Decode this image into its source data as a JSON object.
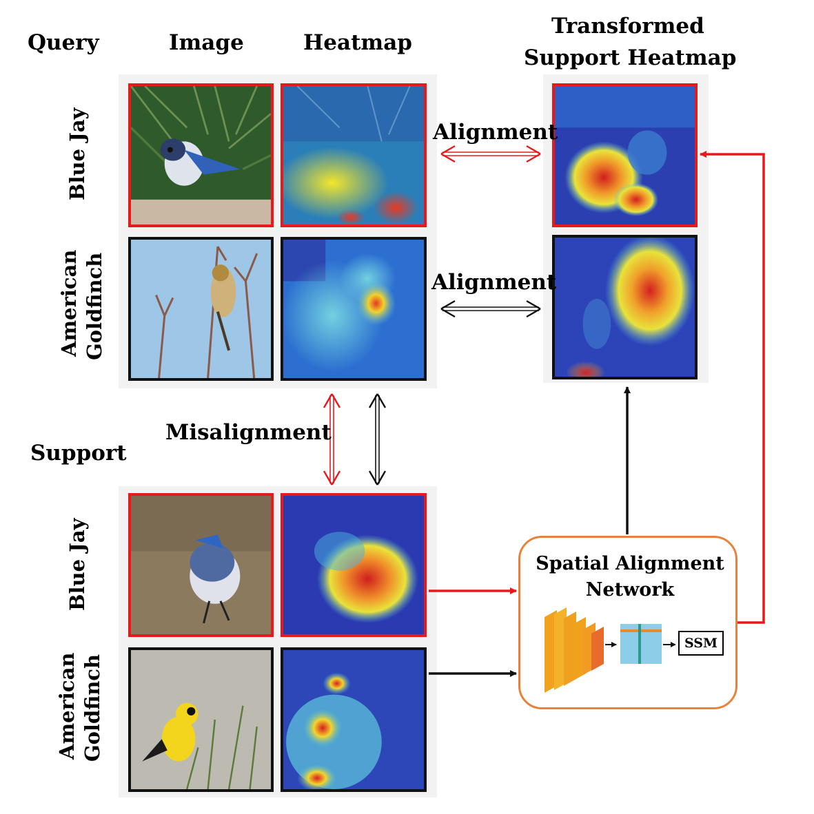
{
  "headers": {
    "query": "Query",
    "image": "Image",
    "heatmap": "Heatmap",
    "transformed_line1": "Transformed",
    "transformed_line2": "Support Heatmap",
    "support": "Support"
  },
  "rows": {
    "blue_jay": "Blue Jay",
    "goldfinch_line1": "American",
    "goldfinch_line2": "Goldfinch"
  },
  "labels": {
    "alignment_top": "Alignment",
    "alignment_bottom": "Alignment",
    "misalignment": "Misalignment"
  },
  "network": {
    "title_line1": "Spatial Alignment",
    "title_line2": "Network",
    "ssm": "SSM"
  },
  "colors": {
    "highlight_red": "#e8191b",
    "frame_black": "#111111",
    "network_border": "#e8823a",
    "cnn_orange": "#f0a21c",
    "feature_blue": "#8ecde8"
  }
}
